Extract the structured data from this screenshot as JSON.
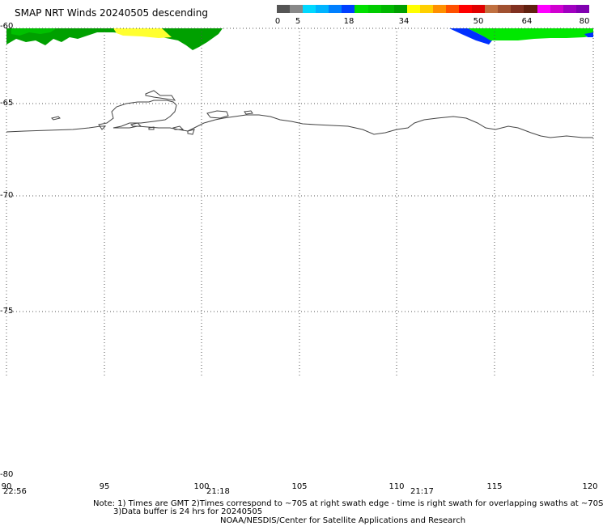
{
  "header": {
    "title": "SMAP NRT Winds  20240505 descending"
  },
  "colorbar": {
    "ticks": [
      "0",
      "5",
      "18",
      "34",
      "50",
      "64",
      "80"
    ],
    "colors": [
      "#555555",
      "#888888",
      "#00d8ff",
      "#00b4ff",
      "#0080ff",
      "#0040ff",
      "#00e000",
      "#00cc00",
      "#00b800",
      "#00a000",
      "#ffff00",
      "#ffd000",
      "#ff9000",
      "#ff5000",
      "#ff0000",
      "#e00000",
      "#c07040",
      "#a05030",
      "#803020",
      "#602010",
      "#ff00ff",
      "#d000d0",
      "#a000c0",
      "#8000b0"
    ]
  },
  "map": {
    "lat_labels": [
      "-60",
      "-65",
      "-70",
      "-75",
      "-80"
    ],
    "lon_labels": [
      "90",
      "95",
      "100",
      "105",
      "110",
      "115",
      "120"
    ],
    "time_labels": [
      "22:56",
      "21:18",
      "21:17"
    ]
  },
  "footer": {
    "note_line1": "Note: 1) Times are GMT 2)Times correspond to ~70S at right swath edge - time is right swath for overlapping swaths at ~70S",
    "note_line2": "3)Data buffer is 24 hrs for 20240505",
    "credit": "NOAA/NESDIS/Center for Satellite Applications and Research"
  }
}
